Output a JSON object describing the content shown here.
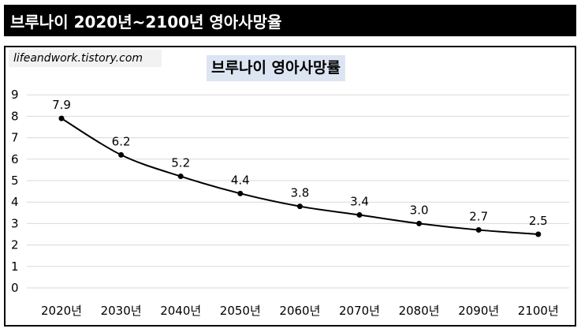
{
  "header": {
    "title": "브루나이 2020년~2100년 영아사망율"
  },
  "watermark": "lifeandwork.tistory.com",
  "chart_data": {
    "type": "line",
    "title": "브루나이 영아사망률",
    "categories": [
      "2020년",
      "2030년",
      "2040년",
      "2050년",
      "2060년",
      "2070년",
      "2080년",
      "2090년",
      "2100년"
    ],
    "values": [
      7.9,
      6.2,
      5.2,
      4.4,
      3.8,
      3.4,
      3.0,
      2.7,
      2.5
    ],
    "data_labels": [
      "7.9",
      "6.2",
      "5.2",
      "4.4",
      "3.8",
      "3.4",
      "3.0",
      "2.7",
      "2.5"
    ],
    "y_ticks": [
      "0",
      "1",
      "2",
      "3",
      "4",
      "5",
      "6",
      "7",
      "8",
      "9"
    ],
    "ylim": [
      0,
      9
    ],
    "grid": true,
    "legend": false,
    "line_color": "#000000"
  }
}
